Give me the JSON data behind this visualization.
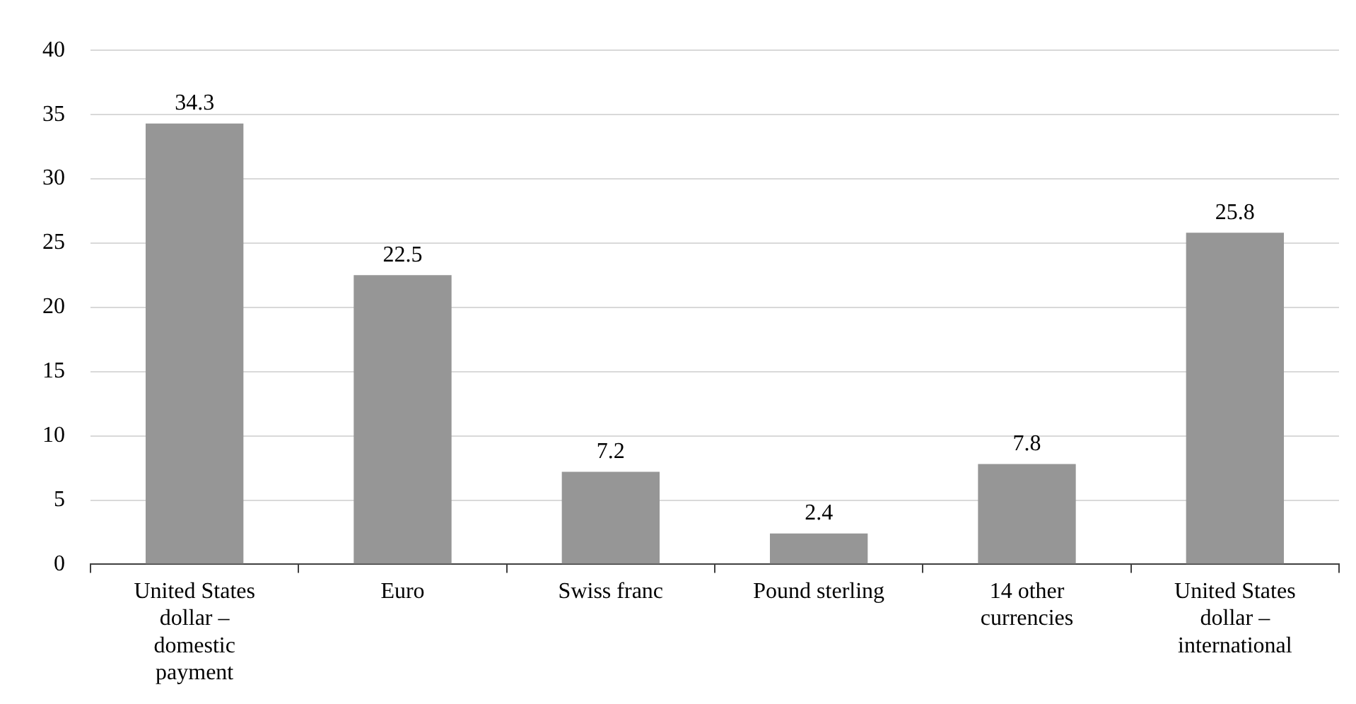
{
  "chart_data": {
    "type": "bar",
    "categories": [
      "United States dollar – domestic payment",
      "Euro",
      "Swiss franc",
      "Pound sterling",
      "14 other currencies",
      "United States dollar – international"
    ],
    "values": [
      34.3,
      22.5,
      7.2,
      2.4,
      7.8,
      25.8
    ],
    "color": "#969696",
    "ylim": [
      0,
      40
    ],
    "yticks": [
      0,
      5,
      10,
      15,
      20,
      25,
      30,
      35,
      40
    ],
    "grid": "y",
    "data_labels": true,
    "legend": false
  }
}
